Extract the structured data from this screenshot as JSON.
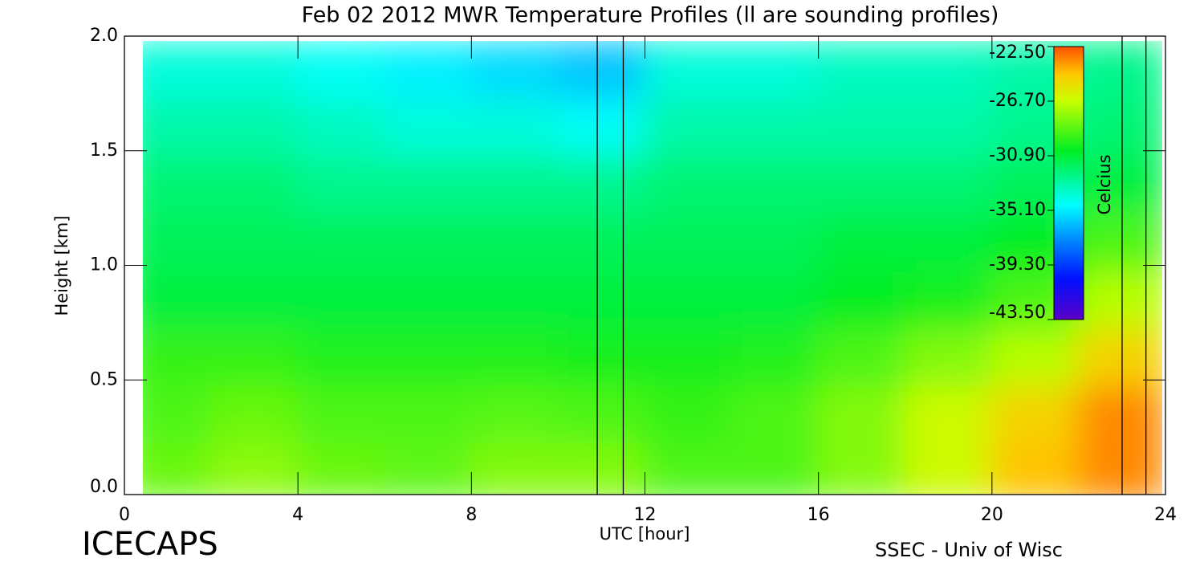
{
  "chart_data": {
    "type": "heatmap",
    "title": "Feb 02 2012 MWR Temperature Profiles (ll are sounding profiles)",
    "x_label": "UTC [hour]",
    "y_label": "Height [km]",
    "colorbar_label": "Celcius",
    "footer_left": "ICECAPS",
    "footer_right": "SSEC - Univ of Wisc",
    "xlim": [
      0,
      24
    ],
    "xticks": [
      0,
      4,
      8,
      12,
      16,
      20,
      24
    ],
    "ylim": [
      0,
      2
    ],
    "yticks": [
      {
        "value": 0,
        "label": "0.0"
      },
      {
        "value": 0.5,
        "label": "0.5"
      },
      {
        "value": 1,
        "label": "1.0"
      },
      {
        "value": 1.5,
        "label": "1.5"
      },
      {
        "value": 2,
        "label": "2.0"
      }
    ],
    "clim": [
      -43.5,
      -22.5
    ],
    "colorbar_ticks": [
      {
        "value": -22.5,
        "label": "-22.50"
      },
      {
        "value": -26.7,
        "label": "-26.70"
      },
      {
        "value": -30.9,
        "label": "-30.90"
      },
      {
        "value": -35.1,
        "label": "-35.10"
      },
      {
        "value": -39.3,
        "label": "-39.30"
      },
      {
        "value": -43.5,
        "label": "-43.50"
      }
    ],
    "x": [
      1,
      3,
      5,
      7,
      9,
      11,
      13,
      15,
      17,
      19,
      21,
      23
    ],
    "y": [
      0.1,
      0.35,
      0.6,
      0.85,
      1.1,
      1.35,
      1.6,
      1.85
    ],
    "values": [
      [
        -28.5,
        -27.8,
        -28.5,
        -28.7,
        -28,
        -28,
        -29,
        -29,
        -28,
        -26.5,
        -24.5,
        -23.5
      ],
      [
        -29,
        -28.5,
        -29,
        -29,
        -28.8,
        -29,
        -29.5,
        -29,
        -28,
        -26.5,
        -25,
        -23.5
      ],
      [
        -29.5,
        -29.5,
        -29.8,
        -29.8,
        -29.8,
        -30,
        -30,
        -29.8,
        -29,
        -28,
        -27,
        -25
      ],
      [
        -31,
        -31,
        -31,
        -31,
        -31,
        -31,
        -31,
        -31,
        -30.5,
        -30,
        -29,
        -27
      ],
      [
        -31.5,
        -31.5,
        -31.5,
        -31.5,
        -31.5,
        -31.5,
        -31.5,
        -31.5,
        -31,
        -31,
        -30.5,
        -29
      ],
      [
        -32,
        -32,
        -32.5,
        -32.5,
        -32.5,
        -32.5,
        -32,
        -32,
        -32,
        -32,
        -31.5,
        -31
      ],
      [
        -33,
        -33,
        -33.5,
        -34,
        -34,
        -34.5,
        -33,
        -33,
        -33,
        -33,
        -32.5,
        -32
      ],
      [
        -34,
        -34,
        -34.5,
        -35,
        -35.5,
        -36,
        -34,
        -34,
        -33.5,
        -33.5,
        -33,
        -32.5
      ]
    ],
    "soundings": [
      10.9,
      11.5,
      23.0,
      23.55
    ]
  }
}
